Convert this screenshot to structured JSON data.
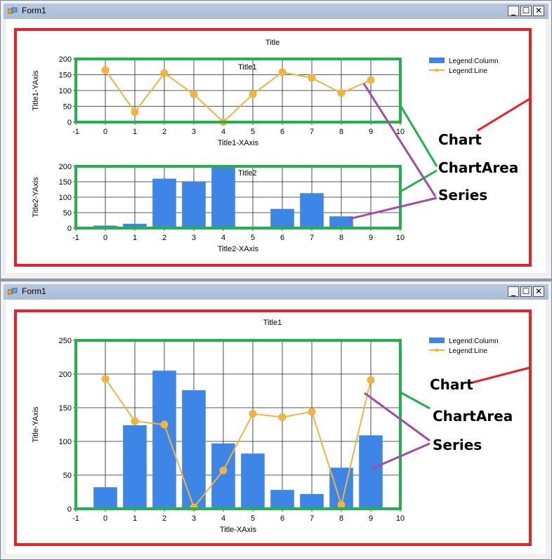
{
  "windows": [
    {
      "title": "Form1",
      "chart_title": "Title",
      "legend": {
        "column_label": "Legend:Column",
        "line_label": "Legend:Line"
      },
      "annotations": {
        "chart": "Chart",
        "chart_area": "ChartArea",
        "series": "Series"
      }
    },
    {
      "title": "Form1",
      "chart_title": "Title1",
      "legend": {
        "column_label": "Legend:Column",
        "line_label": "Legend:Line"
      },
      "annotations": {
        "chart": "Chart",
        "chart_area": "ChartArea",
        "series": "Series"
      }
    }
  ],
  "colors": {
    "column": "#3d86e8",
    "line": "#f2b343",
    "chart_border": "#e8202a",
    "area_border": "#22b14c",
    "series_arrow": "#a04ea6"
  },
  "chart_data": [
    {
      "type": "line",
      "title": "Title1",
      "xlabel": "Title1-XAxis",
      "ylabel": "Title1-YAxis",
      "xlim": [
        -1,
        10
      ],
      "ylim": [
        0,
        200
      ],
      "x_ticks": [
        "-1",
        "0",
        "1",
        "2",
        "3",
        "4",
        "5",
        "6",
        "7",
        "8",
        "9",
        "10"
      ],
      "y_ticks": [
        "0",
        "50",
        "100",
        "150",
        "200"
      ],
      "grid": true,
      "legend": "top-right",
      "series": [
        {
          "name": "Legend:Line",
          "x": [
            0,
            1,
            2,
            3,
            4,
            5,
            6,
            7,
            8,
            9
          ],
          "values": [
            165,
            32,
            155,
            88,
            0,
            88,
            158,
            140,
            92,
            133
          ]
        }
      ]
    },
    {
      "type": "bar",
      "title": "Title2",
      "xlabel": "Title2-XAxis",
      "ylabel": "Title2-YAxis",
      "xlim": [
        -1,
        10
      ],
      "ylim": [
        0,
        200
      ],
      "x_ticks": [
        "-1",
        "0",
        "1",
        "2",
        "3",
        "4",
        "5",
        "6",
        "7",
        "8",
        "9",
        "10"
      ],
      "y_ticks": [
        "0",
        "50",
        "100",
        "150",
        "200"
      ],
      "grid": true,
      "series": [
        {
          "name": "Legend:Column",
          "x": [
            0,
            1,
            2,
            3,
            4,
            5,
            6,
            7,
            8,
            9
          ],
          "values": [
            8,
            14,
            160,
            150,
            200,
            0,
            62,
            113,
            38,
            0
          ]
        }
      ]
    },
    {
      "type": "bar",
      "title": "Title1",
      "xlabel": "Title-XAxis",
      "ylabel": "Title-YAxis",
      "xlim": [
        -1,
        10
      ],
      "ylim": [
        0,
        250
      ],
      "x_ticks": [
        "-1",
        "0",
        "1",
        "2",
        "3",
        "4",
        "5",
        "6",
        "7",
        "8",
        "9",
        "10"
      ],
      "y_ticks": [
        "0",
        "50",
        "100",
        "150",
        "200",
        "250"
      ],
      "grid": true,
      "legend": "top-right",
      "series": [
        {
          "name": "Legend:Column",
          "x": [
            0,
            1,
            2,
            3,
            4,
            5,
            6,
            7,
            8,
            9
          ],
          "values": [
            32,
            124,
            205,
            176,
            97,
            82,
            28,
            22,
            61,
            109
          ]
        },
        {
          "name": "Legend:Line",
          "x": [
            0,
            1,
            2,
            3,
            4,
            5,
            6,
            7,
            8,
            9
          ],
          "values": [
            193,
            130,
            125,
            2,
            57,
            141,
            136,
            144,
            6,
            191
          ]
        }
      ]
    }
  ]
}
